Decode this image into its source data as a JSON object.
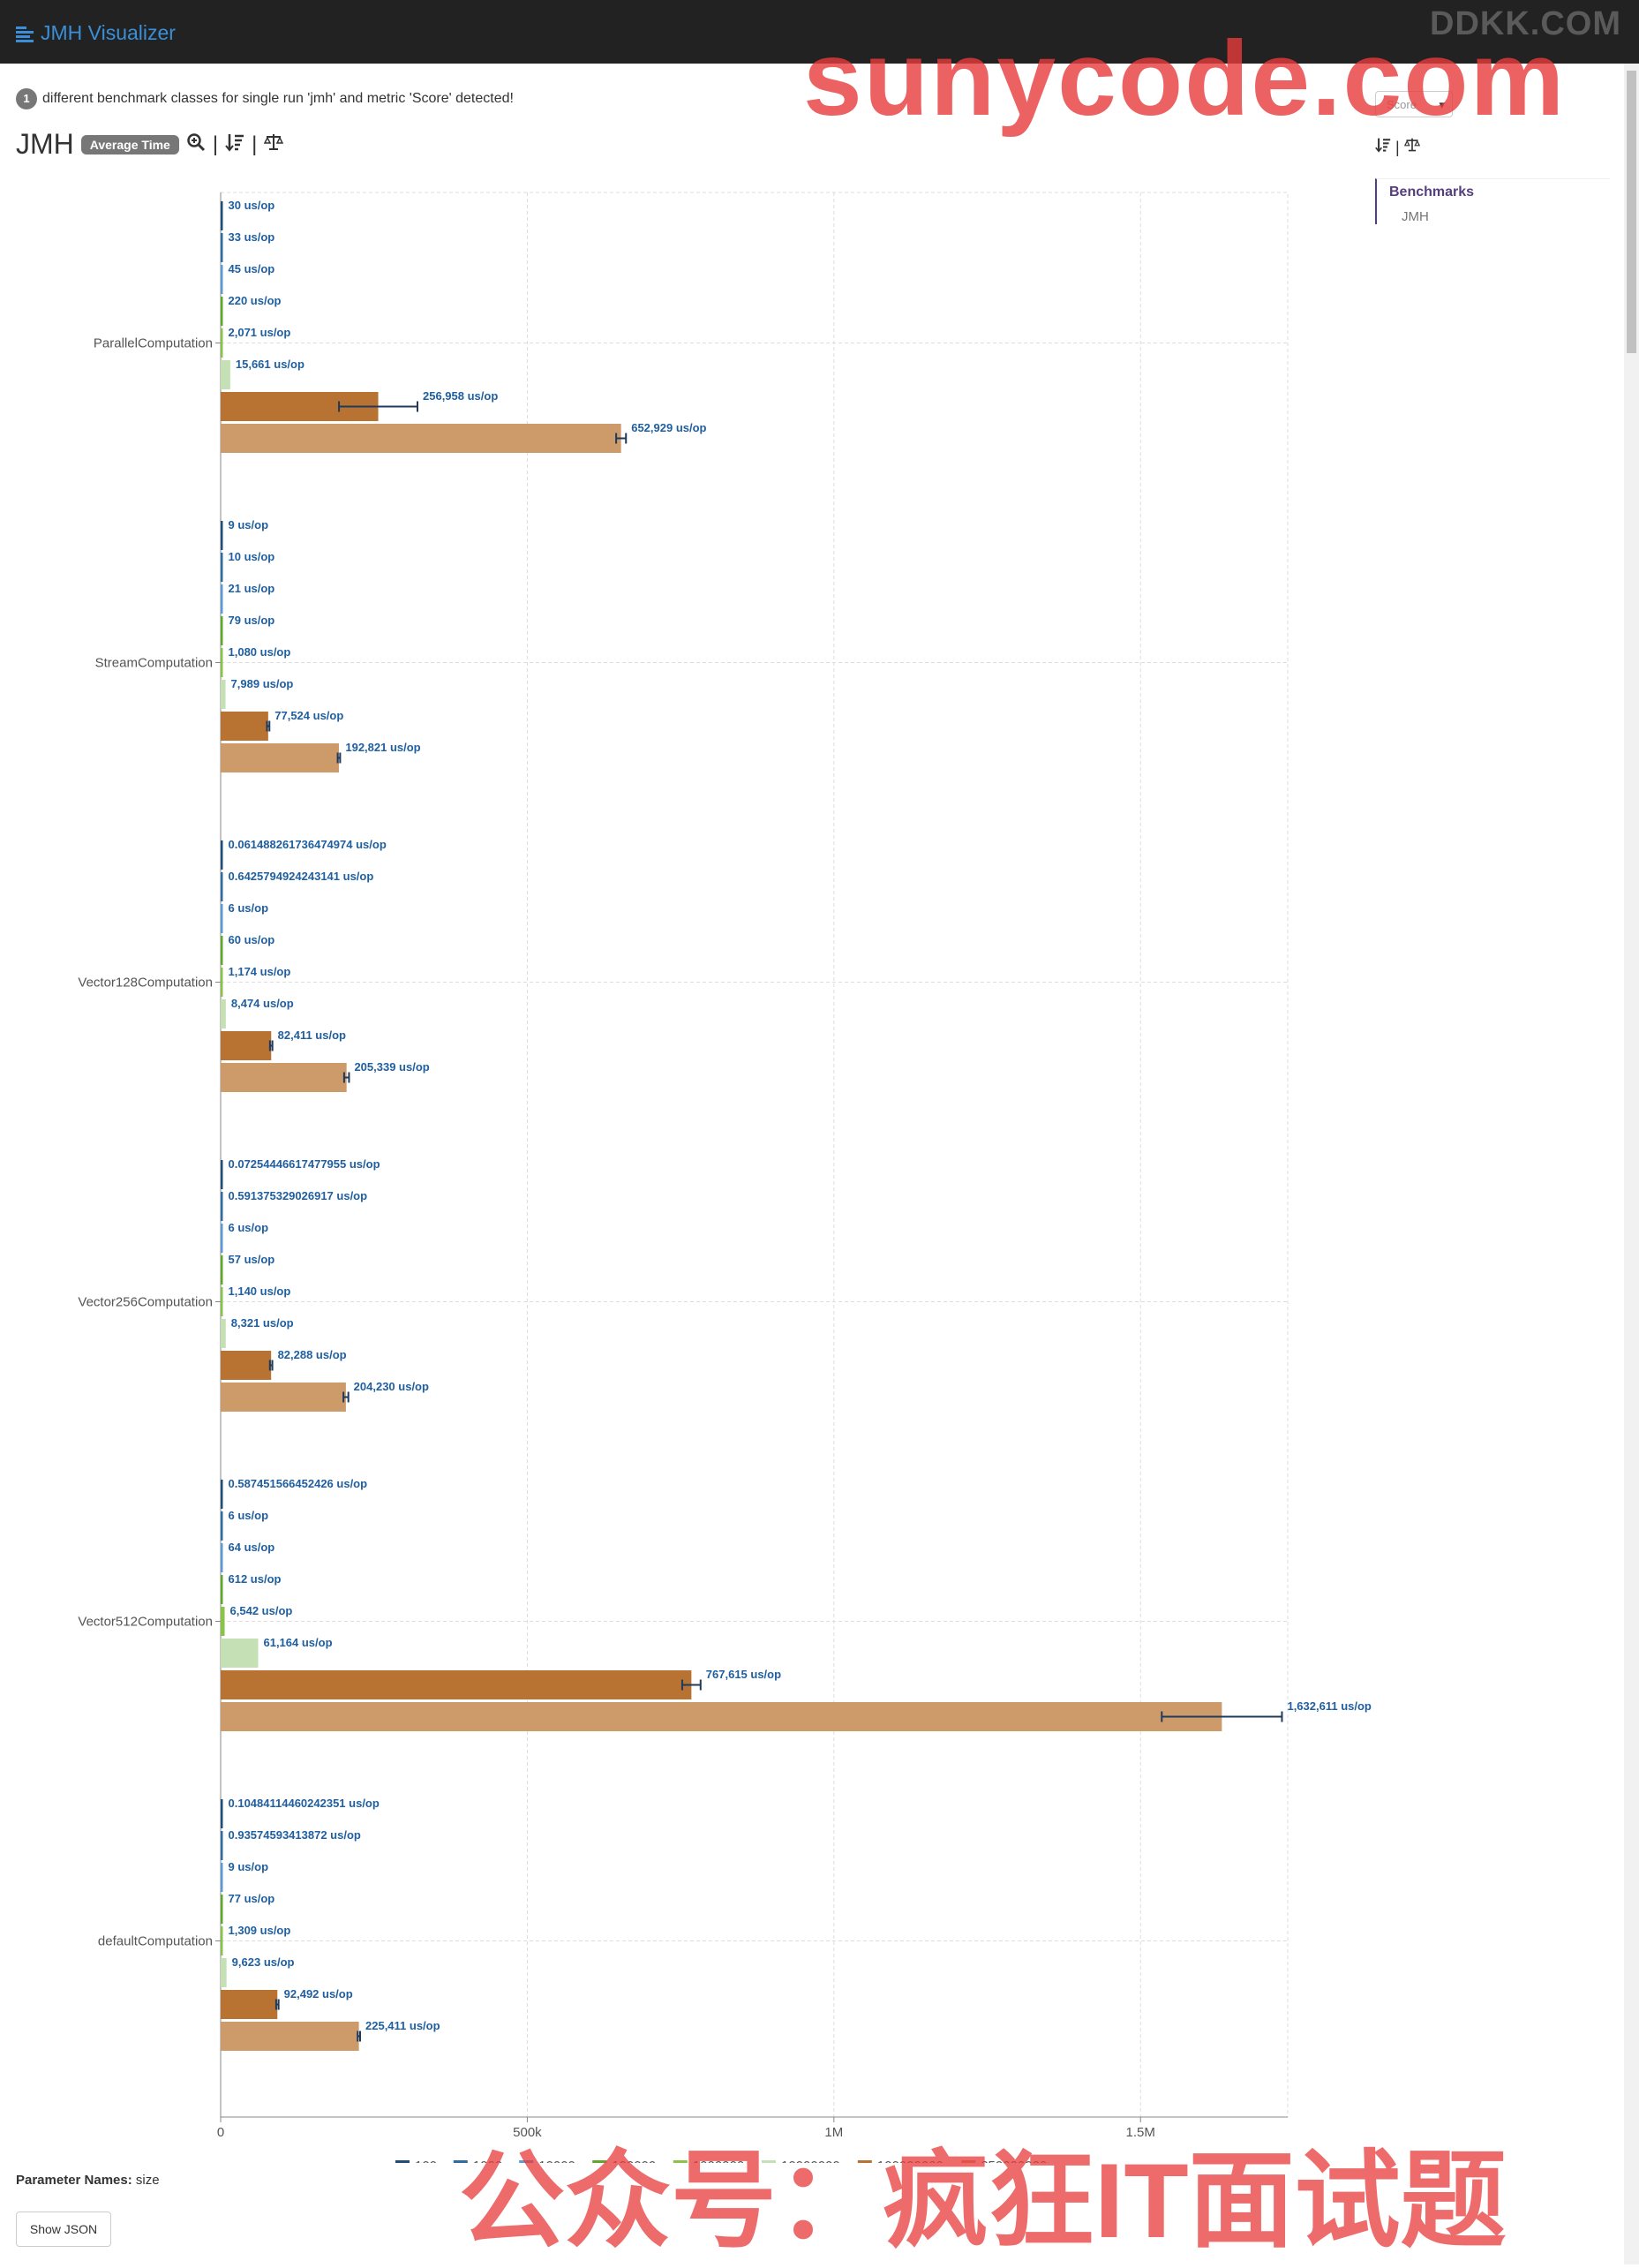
{
  "app": {
    "title": "JMH Visualizer",
    "watermark_top": "DDKK.COM"
  },
  "watermarks": {
    "top": "sunycode.com",
    "bottom": "公众号：疯狂IT面试题"
  },
  "info": {
    "count": "1",
    "message": "different benchmark classes for single run 'jmh' and metric 'Score' detected!"
  },
  "header": {
    "title": "JMH",
    "mode_badge": "Average Time"
  },
  "metric_select": {
    "value": "Score"
  },
  "sidebar": {
    "heading": "Benchmarks",
    "items": [
      "JMH"
    ]
  },
  "footer": {
    "param_label": "Parameter Names:",
    "param_value": "size",
    "show_json": "Show JSON"
  },
  "colors": {
    "text_blue": "#1f5fa0",
    "series": [
      "#1f4e79",
      "#2e6da4",
      "#5b9bd5",
      "#5fa82b",
      "#8bc34a",
      "#c5e0b4",
      "#b87333",
      "#cd9a6a"
    ]
  },
  "chart_data": {
    "type": "bar",
    "orientation": "horizontal",
    "unit": "us/op",
    "categories": [
      "ParallelComputation",
      "StreamComputation",
      "Vector128Computation",
      "Vector256Computation",
      "Vector512Computation",
      "defaultComputation"
    ],
    "xlim": [
      0,
      1740000
    ],
    "xticks": [
      0,
      500000,
      1000000,
      1500000
    ],
    "xtick_labels": [
      "0",
      "500k",
      "1M",
      "1.5M"
    ],
    "legend_position": "bottom",
    "grid": true,
    "groups": [
      {
        "bars": [
          {
            "v": 30,
            "label": "30 us/op",
            "c": 0
          },
          {
            "v": 33,
            "label": "33 us/op",
            "c": 1
          },
          {
            "v": 45,
            "label": "45 us/op",
            "c": 2
          },
          {
            "v": 220,
            "label": "220 us/op",
            "c": 3
          },
          {
            "v": 2071,
            "label": "2,071 us/op",
            "c": 4
          },
          {
            "v": 15661,
            "label": "15,661 us/op",
            "c": 5
          },
          {
            "v": 256958,
            "label": "256,958 us/op",
            "c": 6,
            "err": 64000
          },
          {
            "v": 652929,
            "label": "652,929 us/op",
            "c": 7,
            "err": 8000
          }
        ]
      },
      {
        "bars": [
          {
            "v": 9,
            "label": "9 us/op",
            "c": 0
          },
          {
            "v": 10,
            "label": "10 us/op",
            "c": 1
          },
          {
            "v": 21,
            "label": "21 us/op",
            "c": 2
          },
          {
            "v": 79,
            "label": "79 us/op",
            "c": 3
          },
          {
            "v": 1080,
            "label": "1,080 us/op",
            "c": 4
          },
          {
            "v": 7989,
            "label": "7,989 us/op",
            "c": 5
          },
          {
            "v": 77524,
            "label": "77,524 us/op",
            "c": 6,
            "err": 2000
          },
          {
            "v": 192821,
            "label": "192,821 us/op",
            "c": 7,
            "err": 2000
          }
        ]
      },
      {
        "bars": [
          {
            "v": 0.061488261736474974,
            "label": "0.061488261736474974 us/op",
            "c": 0
          },
          {
            "v": 0.6425794924243141,
            "label": "0.6425794924243141 us/op",
            "c": 1
          },
          {
            "v": 6,
            "label": "6 us/op",
            "c": 2
          },
          {
            "v": 60,
            "label": "60 us/op",
            "c": 3
          },
          {
            "v": 1174,
            "label": "1,174 us/op",
            "c": 4
          },
          {
            "v": 8474,
            "label": "8,474 us/op",
            "c": 5
          },
          {
            "v": 82411,
            "label": "82,411 us/op",
            "c": 6,
            "err": 2000
          },
          {
            "v": 205339,
            "label": "205,339 us/op",
            "c": 7,
            "err": 4000
          }
        ]
      },
      {
        "bars": [
          {
            "v": 0.07254446617477955,
            "label": "0.07254446617477955 us/op",
            "c": 0
          },
          {
            "v": 0.591375329026917,
            "label": "0.591375329026917 us/op",
            "c": 1
          },
          {
            "v": 6,
            "label": "6 us/op",
            "c": 2
          },
          {
            "v": 57,
            "label": "57 us/op",
            "c": 3
          },
          {
            "v": 1140,
            "label": "1,140 us/op",
            "c": 4
          },
          {
            "v": 8321,
            "label": "8,321 us/op",
            "c": 5
          },
          {
            "v": 82288,
            "label": "82,288 us/op",
            "c": 6,
            "err": 2000
          },
          {
            "v": 204230,
            "label": "204,230 us/op",
            "c": 7,
            "err": 4000
          }
        ]
      },
      {
        "bars": [
          {
            "v": 0.587451566452426,
            "label": "0.587451566452426 us/op",
            "c": 0
          },
          {
            "v": 6,
            "label": "6 us/op",
            "c": 1
          },
          {
            "v": 64,
            "label": "64 us/op",
            "c": 2
          },
          {
            "v": 612,
            "label": "612 us/op",
            "c": 3
          },
          {
            "v": 6542,
            "label": "6,542 us/op",
            "c": 4
          },
          {
            "v": 61164,
            "label": "61,164 us/op",
            "c": 5
          },
          {
            "v": 767615,
            "label": "767,615 us/op",
            "c": 6,
            "err": 15000
          },
          {
            "v": 1632611,
            "label": "1,632,611 us/op",
            "c": 7,
            "err": 98000
          }
        ]
      },
      {
        "bars": [
          {
            "v": 0.10484114460242351,
            "label": "0.10484114460242351 us/op",
            "c": 0
          },
          {
            "v": 0.93574593413872,
            "label": "0.93574593413872 us/op",
            "c": 1
          },
          {
            "v": 9,
            "label": "9 us/op",
            "c": 2
          },
          {
            "v": 77,
            "label": "77 us/op",
            "c": 3
          },
          {
            "v": 1309,
            "label": "1,309 us/op",
            "c": 4
          },
          {
            "v": 9623,
            "label": "9,623 us/op",
            "c": 5
          },
          {
            "v": 92492,
            "label": "92,492 us/op",
            "c": 6,
            "err": 2000
          },
          {
            "v": 225411,
            "label": "225,411 us/op",
            "c": 7,
            "err": 2000
          }
        ]
      }
    ],
    "legend": [
      "100",
      "1000",
      "10000",
      "100000",
      "1000000",
      "10000000",
      "100000000",
      "250000000"
    ]
  }
}
